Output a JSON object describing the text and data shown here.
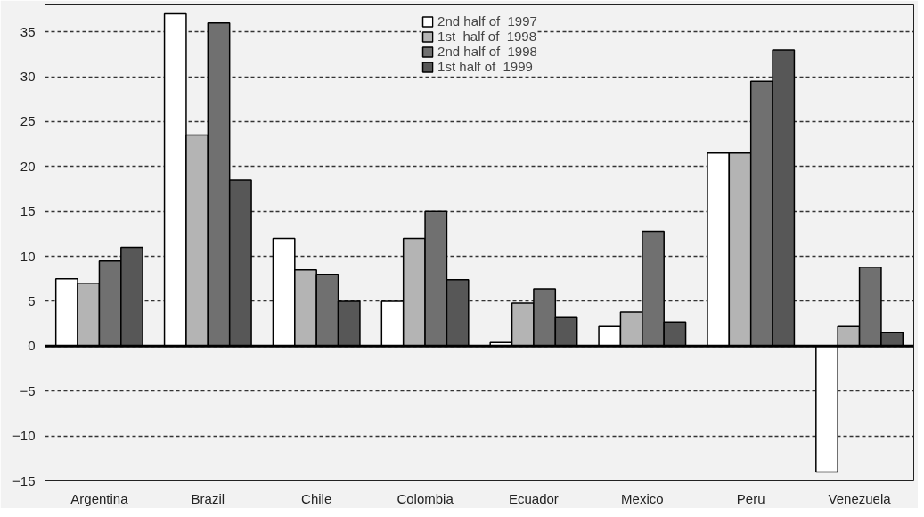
{
  "chart_data": {
    "type": "bar",
    "categories": [
      "Argentina",
      "Brazil",
      "Chile",
      "Colombia",
      "Ecuador",
      "Mexico",
      "Peru",
      "Venezuela"
    ],
    "series": [
      {
        "name": "2nd half of  1997",
        "color": "#ffffff",
        "values": [
          7.5,
          37,
          12,
          5,
          0.4,
          2.2,
          21.5,
          -14
        ]
      },
      {
        "name": "1st  half of  1998",
        "color": "#b4b4b4",
        "values": [
          7,
          23.5,
          8.5,
          12,
          4.8,
          3.8,
          21.5,
          2.2
        ]
      },
      {
        "name": "2nd half of  1998",
        "color": "#707070",
        "values": [
          9.5,
          36,
          8,
          15,
          6.4,
          12.8,
          29.5,
          8.8
        ]
      },
      {
        "name": "1st half of  1999",
        "color": "#575757",
        "values": [
          11,
          18.5,
          5,
          7.4,
          3.2,
          2.7,
          33,
          1.5
        ]
      }
    ],
    "ylim": [
      -15,
      38
    ],
    "yticks": [
      -15,
      -10,
      -5,
      0,
      5,
      10,
      15,
      20,
      25,
      30,
      35
    ],
    "grid": "y",
    "legend": "top"
  }
}
